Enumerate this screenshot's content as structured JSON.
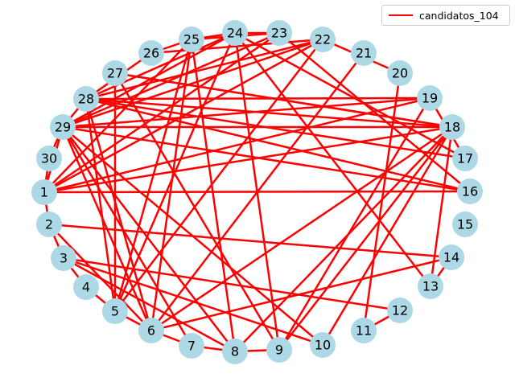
{
  "legend": {
    "label": "candidatos_104",
    "color": "#ff0000"
  },
  "node_color": "#add8e6",
  "edge_color": "#ff0000",
  "nodes": [
    "1",
    "2",
    "3",
    "4",
    "5",
    "6",
    "7",
    "8",
    "9",
    "10",
    "11",
    "12",
    "13",
    "14",
    "15",
    "16",
    "17",
    "18",
    "19",
    "20",
    "21",
    "22",
    "23",
    "24",
    "25",
    "26",
    "27",
    "28",
    "29",
    "30"
  ],
  "edges": [
    [
      "1",
      "2"
    ],
    [
      "1",
      "22"
    ],
    [
      "1",
      "23"
    ],
    [
      "1",
      "19"
    ],
    [
      "1",
      "18"
    ],
    [
      "1",
      "25"
    ],
    [
      "1",
      "30"
    ],
    [
      "2",
      "3"
    ],
    [
      "2",
      "14"
    ],
    [
      "2",
      "6"
    ],
    [
      "3",
      "4"
    ],
    [
      "3",
      "8"
    ],
    [
      "3",
      "10"
    ],
    [
      "3",
      "12"
    ],
    [
      "4",
      "5"
    ],
    [
      "5",
      "6"
    ],
    [
      "5",
      "24"
    ],
    [
      "5",
      "25"
    ],
    [
      "5",
      "27"
    ],
    [
      "5",
      "28"
    ],
    [
      "5",
      "22"
    ],
    [
      "6",
      "7"
    ],
    [
      "6",
      "14"
    ],
    [
      "6",
      "18"
    ],
    [
      "6",
      "21"
    ],
    [
      "6",
      "25"
    ],
    [
      "6",
      "28"
    ],
    [
      "6",
      "29"
    ],
    [
      "7",
      "8"
    ],
    [
      "7",
      "29"
    ],
    [
      "8",
      "9"
    ],
    [
      "8",
      "29"
    ],
    [
      "8",
      "25"
    ],
    [
      "8",
      "18"
    ],
    [
      "9",
      "24"
    ],
    [
      "9",
      "18"
    ],
    [
      "9",
      "27"
    ],
    [
      "9",
      "19"
    ],
    [
      "10",
      "18"
    ],
    [
      "10",
      "29"
    ],
    [
      "11",
      "12"
    ],
    [
      "11",
      "20"
    ],
    [
      "13",
      "14"
    ],
    [
      "13",
      "18"
    ],
    [
      "13",
      "24"
    ],
    [
      "16",
      "28"
    ],
    [
      "16",
      "29"
    ],
    [
      "16",
      "23"
    ],
    [
      "16",
      "1"
    ],
    [
      "17",
      "19"
    ],
    [
      "17",
      "24"
    ],
    [
      "17",
      "28"
    ],
    [
      "18",
      "29"
    ],
    [
      "18",
      "27"
    ],
    [
      "18",
      "28"
    ],
    [
      "19",
      "28"
    ],
    [
      "19",
      "29"
    ],
    [
      "20",
      "22"
    ],
    [
      "22",
      "26"
    ],
    [
      "22",
      "29"
    ],
    [
      "22",
      "28"
    ],
    [
      "23",
      "24"
    ],
    [
      "23",
      "29"
    ],
    [
      "23",
      "25"
    ],
    [
      "24",
      "25"
    ],
    [
      "24",
      "29"
    ],
    [
      "24",
      "28"
    ],
    [
      "25",
      "26"
    ],
    [
      "26",
      "28"
    ],
    [
      "27",
      "18"
    ],
    [
      "28",
      "29"
    ],
    [
      "29",
      "1"
    ],
    [
      "29",
      "30"
    ]
  ]
}
